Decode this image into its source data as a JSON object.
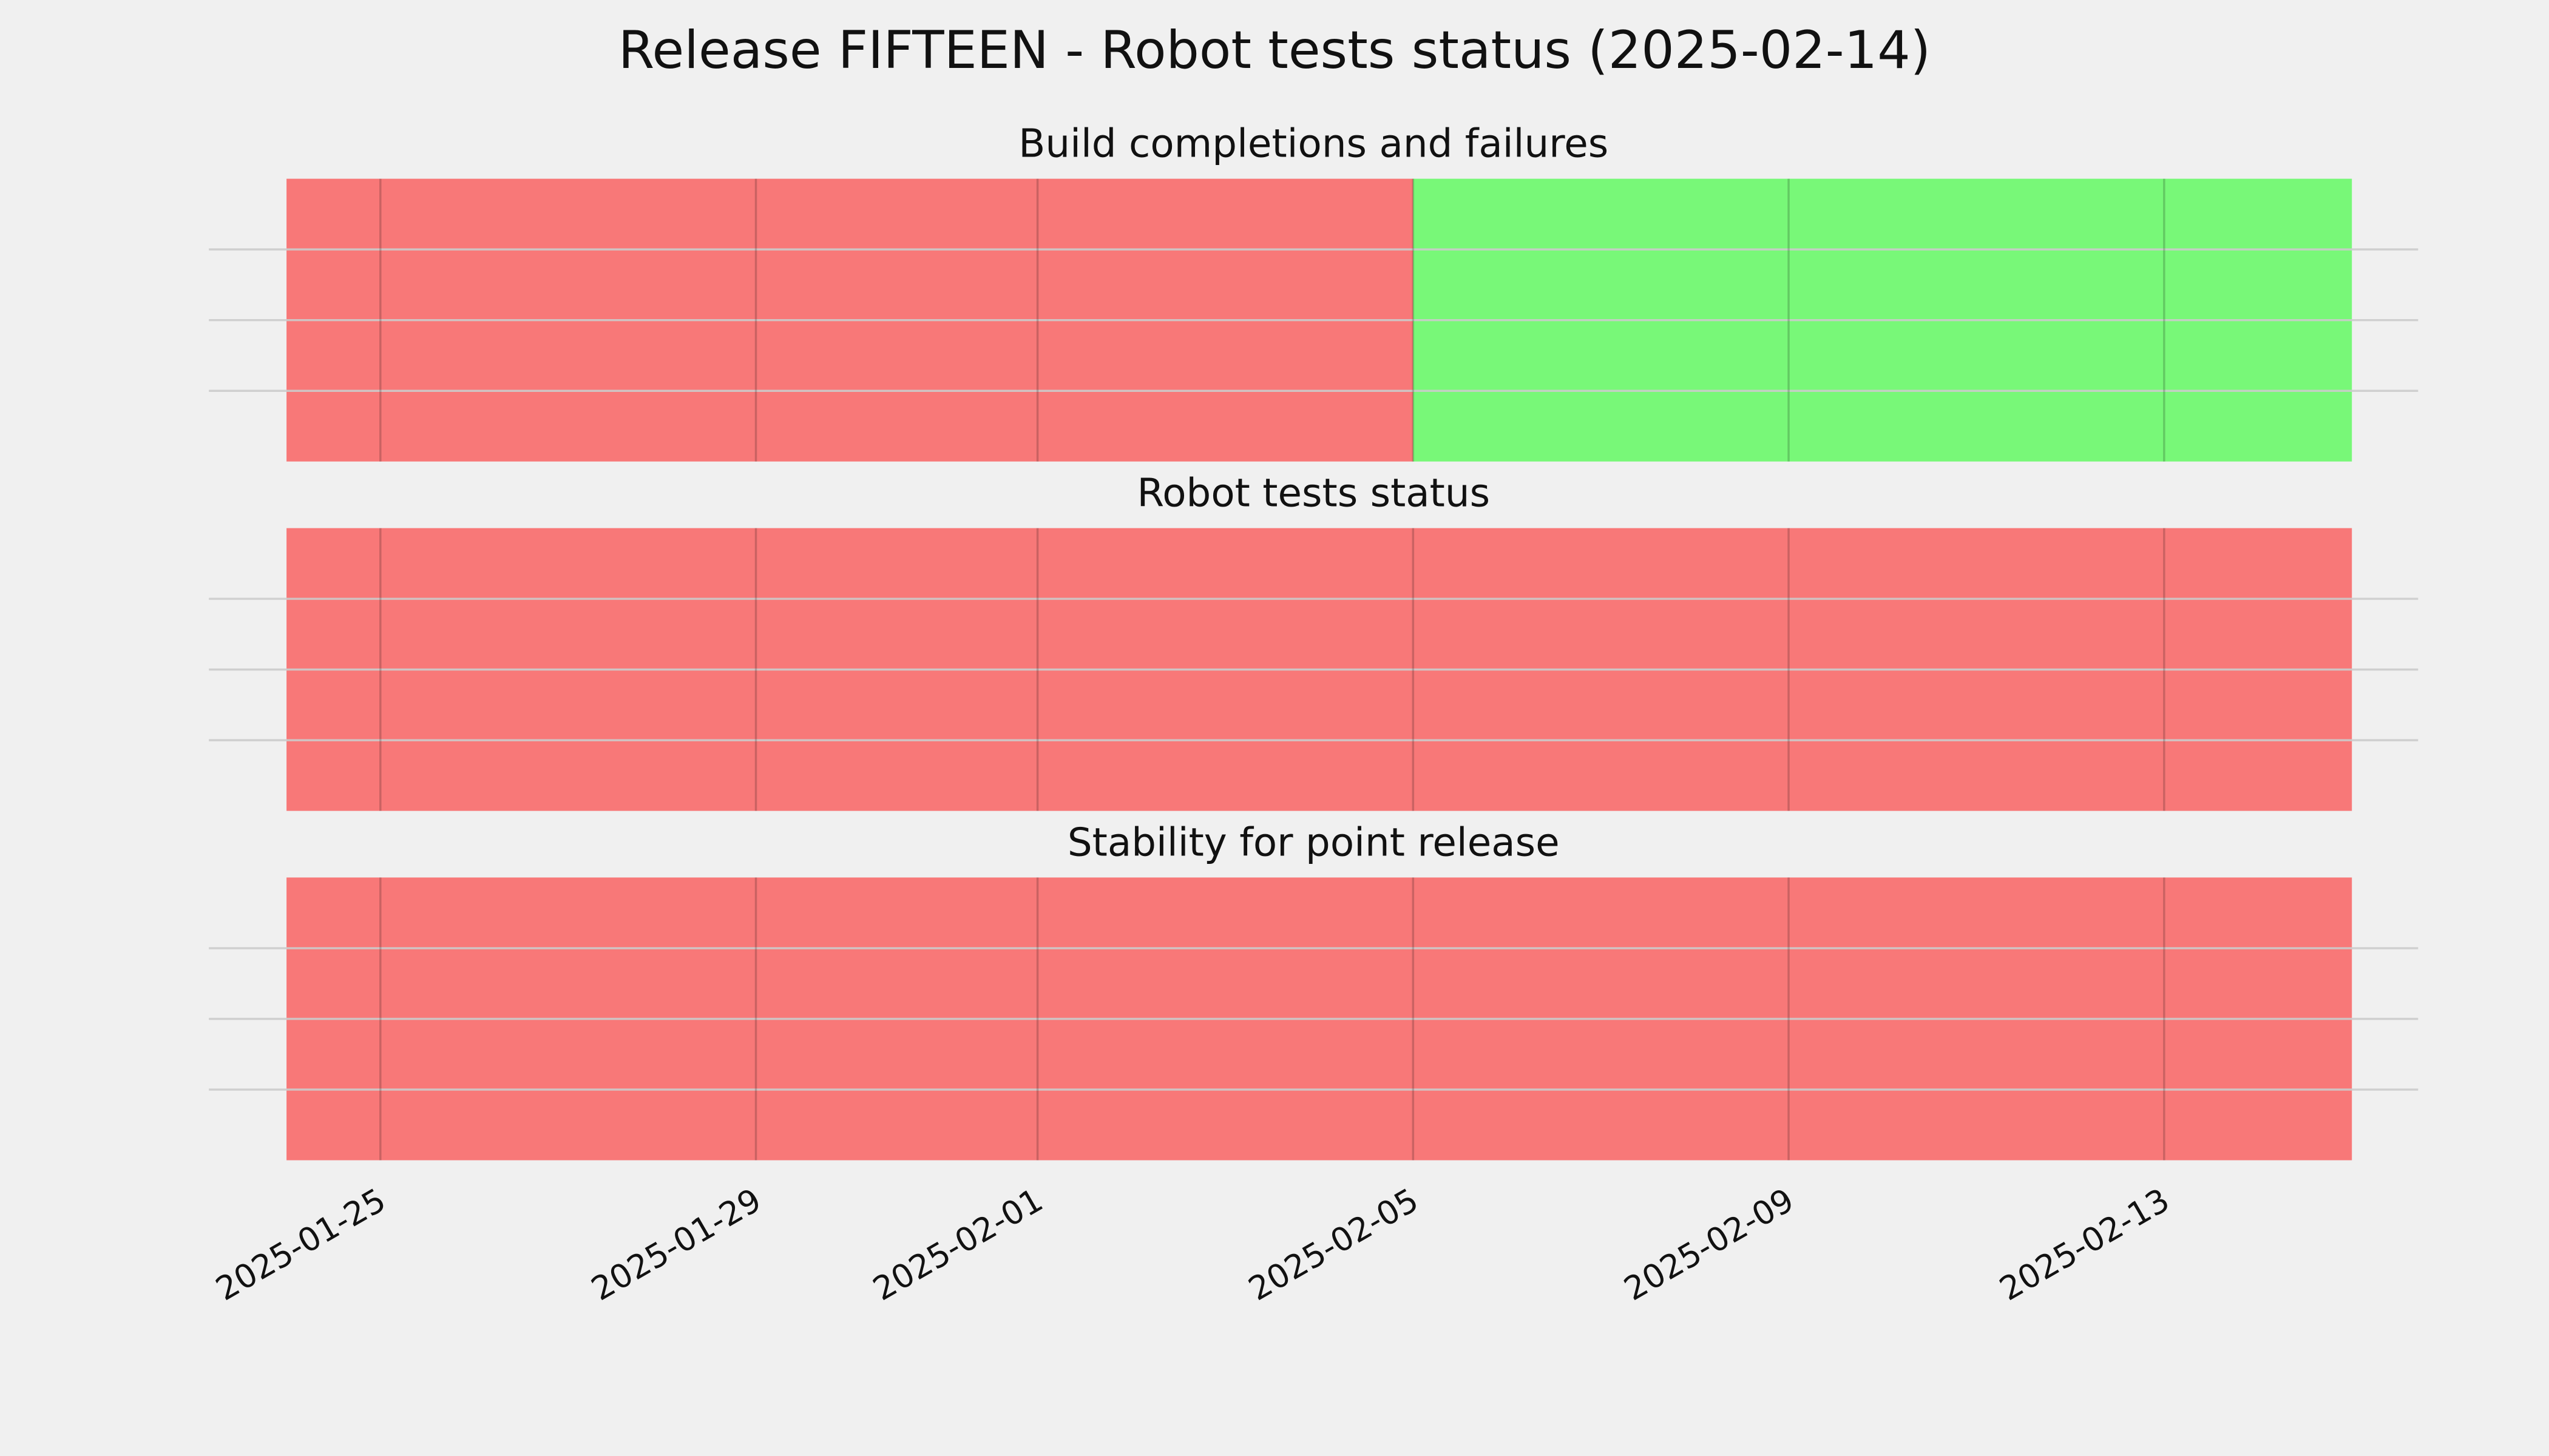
{
  "chart_data": {
    "type": "timeline",
    "title": "Release FIFTEEN - Robot tests status (2025-02-14)",
    "xlim": [
      "2025-01-23",
      "2025-02-16"
    ],
    "xticks": [
      "2025-01-25",
      "2025-01-29",
      "2025-02-01",
      "2025-02-05",
      "2025-02-09",
      "2025-02-13"
    ],
    "ylim": [
      0,
      1
    ],
    "yticks": [
      0.25,
      0.5,
      0.75
    ],
    "grid": true,
    "opacity": 0.5,
    "panels": [
      {
        "title": "Build completions and failures",
        "spans": [
          {
            "start": "2025-01-24",
            "end": "2025-02-05",
            "color": "#ff0000"
          },
          {
            "start": "2025-02-05",
            "end": "2025-02-15",
            "color": "#00ff00"
          }
        ]
      },
      {
        "title": "Robot tests status",
        "spans": [
          {
            "start": "2025-01-24",
            "end": "2025-02-15",
            "color": "#ff0000"
          }
        ]
      },
      {
        "title": "Stability for point release",
        "spans": [
          {
            "start": "2025-01-24",
            "end": "2025-02-15",
            "color": "#ff0000"
          }
        ]
      }
    ]
  }
}
